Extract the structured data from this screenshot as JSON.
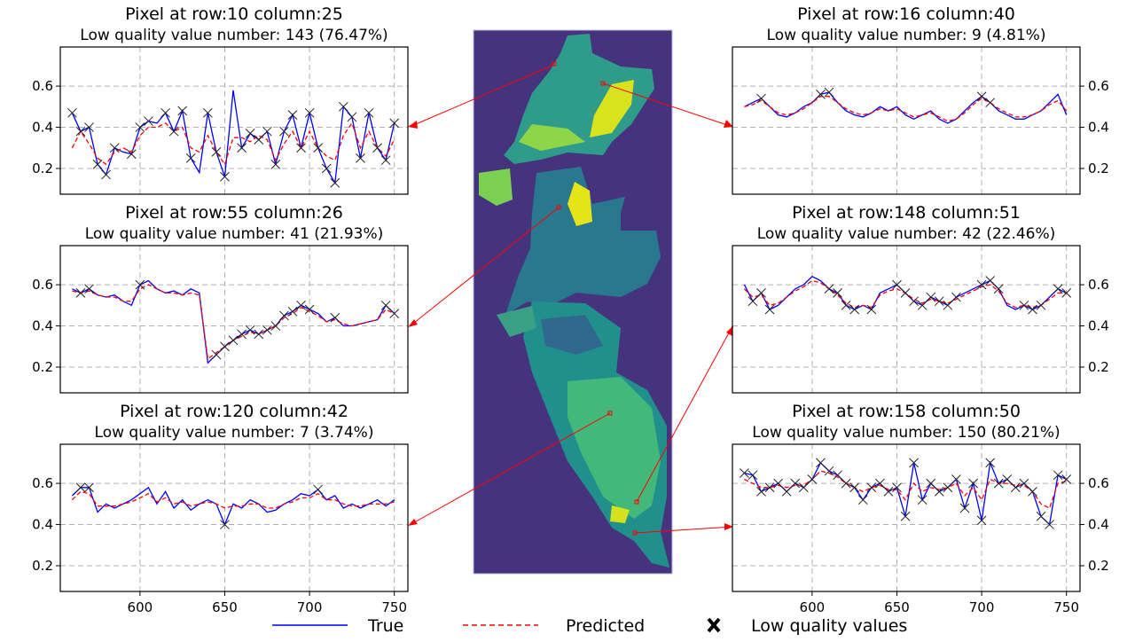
{
  "legend": {
    "true_label": "True",
    "predicted_label": "Predicted",
    "low_quality_label": "Low quality values"
  },
  "colors": {
    "true": "#0000ff",
    "predicted": "#ff0000",
    "low_quality": "#000000",
    "map_background": "#46337e",
    "link_line": "#ff0000"
  },
  "map": {
    "type": "image",
    "colormap": "viridis"
  },
  "chart_data": [
    {
      "type": "line",
      "title": "Pixel at row:10 column:25",
      "subtitle": "Low quality value number:  143 (76.47%)",
      "ylim": [
        0.075,
        0.79
      ],
      "xlim": [
        553,
        758
      ],
      "yticks": [
        "0.2",
        "0.4",
        "0.6"
      ],
      "xticks": [
        "600",
        "650",
        "700",
        "750"
      ],
      "grid": true,
      "y_axis_side": "left",
      "x": [
        560,
        565,
        570,
        575,
        580,
        585,
        590,
        595,
        600,
        605,
        610,
        615,
        620,
        625,
        630,
        635,
        640,
        645,
        650,
        655,
        660,
        665,
        670,
        675,
        680,
        685,
        690,
        695,
        700,
        705,
        710,
        715,
        720,
        725,
        730,
        735,
        740,
        745,
        750
      ],
      "true": [
        0.47,
        0.38,
        0.4,
        0.22,
        0.17,
        0.3,
        0.28,
        0.27,
        0.4,
        0.43,
        0.42,
        0.47,
        0.38,
        0.48,
        0.25,
        0.18,
        0.47,
        0.28,
        0.16,
        0.58,
        0.3,
        0.37,
        0.34,
        0.38,
        0.22,
        0.38,
        0.46,
        0.3,
        0.47,
        0.3,
        0.2,
        0.13,
        0.5,
        0.45,
        0.25,
        0.47,
        0.3,
        0.24,
        0.42
      ],
      "predicted": [
        0.3,
        0.38,
        0.32,
        0.25,
        0.22,
        0.28,
        0.3,
        0.28,
        0.36,
        0.4,
        0.4,
        0.42,
        0.38,
        0.4,
        0.3,
        0.28,
        0.36,
        0.28,
        0.22,
        0.35,
        0.35,
        0.33,
        0.36,
        0.34,
        0.24,
        0.32,
        0.38,
        0.3,
        0.38,
        0.3,
        0.26,
        0.24,
        0.36,
        0.42,
        0.3,
        0.38,
        0.3,
        0.26,
        0.34
      ],
      "low_quality_x": [
        560,
        565,
        570,
        575,
        580,
        585,
        595,
        600,
        605,
        615,
        620,
        625,
        630,
        640,
        645,
        650,
        660,
        665,
        670,
        675,
        680,
        685,
        690,
        695,
        700,
        705,
        710,
        715,
        720,
        725,
        730,
        735,
        740,
        745,
        750
      ]
    },
    {
      "type": "line",
      "title": "Pixel at row:55 column:26",
      "subtitle": "Low quality value number:  41 (21.93%)",
      "ylim": [
        0.075,
        0.79
      ],
      "xlim": [
        553,
        758
      ],
      "yticks": [
        "0.2",
        "0.4",
        "0.6"
      ],
      "xticks": [
        "600",
        "650",
        "700",
        "750"
      ],
      "grid": true,
      "y_axis_side": "left",
      "x": [
        560,
        565,
        570,
        575,
        580,
        585,
        590,
        595,
        600,
        605,
        610,
        615,
        620,
        625,
        630,
        635,
        640,
        645,
        650,
        655,
        660,
        665,
        670,
        675,
        680,
        685,
        690,
        695,
        700,
        705,
        710,
        715,
        720,
        725,
        730,
        735,
        740,
        745,
        750
      ],
      "true": [
        0.58,
        0.56,
        0.58,
        0.55,
        0.54,
        0.55,
        0.52,
        0.5,
        0.6,
        0.62,
        0.58,
        0.56,
        0.57,
        0.55,
        0.58,
        0.56,
        0.22,
        0.26,
        0.3,
        0.33,
        0.36,
        0.38,
        0.36,
        0.38,
        0.4,
        0.45,
        0.47,
        0.5,
        0.48,
        0.46,
        0.42,
        0.44,
        0.4,
        0.4,
        0.41,
        0.42,
        0.43,
        0.5,
        0.46
      ],
      "predicted": [
        0.57,
        0.56,
        0.57,
        0.55,
        0.54,
        0.54,
        0.52,
        0.52,
        0.58,
        0.6,
        0.58,
        0.56,
        0.56,
        0.55,
        0.56,
        0.55,
        0.24,
        0.27,
        0.3,
        0.33,
        0.35,
        0.37,
        0.36,
        0.38,
        0.4,
        0.44,
        0.46,
        0.49,
        0.47,
        0.45,
        0.42,
        0.43,
        0.41,
        0.4,
        0.41,
        0.42,
        0.43,
        0.48,
        0.46
      ],
      "low_quality_x": [
        565,
        570,
        600,
        645,
        650,
        655,
        660,
        665,
        670,
        675,
        680,
        685,
        690,
        695,
        700,
        715,
        745,
        750
      ]
    },
    {
      "type": "line",
      "title": "Pixel at row:120 column:42",
      "subtitle": "Low quality value number:  7 (3.74%)",
      "ylim": [
        0.075,
        0.79
      ],
      "xlim": [
        553,
        758
      ],
      "yticks": [
        "0.2",
        "0.4",
        "0.6"
      ],
      "xticks": [
        "600",
        "650",
        "700",
        "750"
      ],
      "grid": true,
      "y_axis_side": "left",
      "x": [
        560,
        565,
        570,
        575,
        580,
        585,
        590,
        595,
        600,
        605,
        610,
        615,
        620,
        625,
        630,
        635,
        640,
        645,
        650,
        655,
        660,
        665,
        670,
        675,
        680,
        685,
        690,
        695,
        700,
        705,
        710,
        715,
        720,
        725,
        730,
        735,
        740,
        745,
        750
      ],
      "true": [
        0.54,
        0.58,
        0.58,
        0.46,
        0.5,
        0.48,
        0.5,
        0.52,
        0.55,
        0.58,
        0.5,
        0.56,
        0.48,
        0.52,
        0.47,
        0.5,
        0.52,
        0.5,
        0.4,
        0.5,
        0.48,
        0.52,
        0.5,
        0.46,
        0.47,
        0.5,
        0.52,
        0.55,
        0.54,
        0.57,
        0.52,
        0.54,
        0.48,
        0.5,
        0.48,
        0.5,
        0.52,
        0.49,
        0.52
      ],
      "predicted": [
        0.52,
        0.56,
        0.55,
        0.49,
        0.49,
        0.49,
        0.5,
        0.51,
        0.53,
        0.55,
        0.51,
        0.53,
        0.5,
        0.51,
        0.49,
        0.5,
        0.51,
        0.5,
        0.48,
        0.49,
        0.49,
        0.5,
        0.5,
        0.48,
        0.48,
        0.5,
        0.51,
        0.53,
        0.53,
        0.55,
        0.52,
        0.52,
        0.5,
        0.49,
        0.49,
        0.5,
        0.5,
        0.5,
        0.51
      ],
      "low_quality_x": [
        565,
        570,
        650,
        705
      ]
    },
    {
      "type": "line",
      "title": "Pixel at row:16 column:40",
      "subtitle": "Low quality value number:  9 (4.81%)",
      "ylim": [
        0.075,
        0.79
      ],
      "xlim": [
        553,
        758
      ],
      "yticks": [
        "0.2",
        "0.4",
        "0.6"
      ],
      "xticks": [
        "600",
        "650",
        "700",
        "750"
      ],
      "grid": true,
      "y_axis_side": "right",
      "x": [
        560,
        565,
        570,
        575,
        580,
        585,
        590,
        595,
        600,
        605,
        610,
        615,
        620,
        625,
        630,
        635,
        640,
        645,
        650,
        655,
        660,
        665,
        670,
        675,
        680,
        685,
        690,
        695,
        700,
        705,
        710,
        715,
        720,
        725,
        730,
        735,
        740,
        745,
        750
      ],
      "true": [
        0.5,
        0.52,
        0.54,
        0.5,
        0.46,
        0.45,
        0.47,
        0.5,
        0.52,
        0.56,
        0.57,
        0.52,
        0.48,
        0.46,
        0.45,
        0.47,
        0.5,
        0.48,
        0.5,
        0.46,
        0.44,
        0.46,
        0.48,
        0.44,
        0.42,
        0.44,
        0.48,
        0.52,
        0.55,
        0.52,
        0.48,
        0.46,
        0.44,
        0.44,
        0.46,
        0.48,
        0.52,
        0.56,
        0.46
      ],
      "predicted": [
        0.5,
        0.51,
        0.53,
        0.5,
        0.47,
        0.46,
        0.47,
        0.49,
        0.52,
        0.55,
        0.55,
        0.52,
        0.49,
        0.47,
        0.46,
        0.47,
        0.49,
        0.48,
        0.49,
        0.47,
        0.45,
        0.46,
        0.47,
        0.45,
        0.43,
        0.44,
        0.47,
        0.51,
        0.54,
        0.52,
        0.49,
        0.47,
        0.45,
        0.45,
        0.46,
        0.48,
        0.51,
        0.53,
        0.48
      ],
      "low_quality_x": [
        570,
        605,
        610,
        700,
        705
      ]
    },
    {
      "type": "line",
      "title": "Pixel at row:148 column:51",
      "subtitle": "Low quality value number:  42 (22.46%)",
      "ylim": [
        0.075,
        0.79
      ],
      "xlim": [
        553,
        758
      ],
      "yticks": [
        "0.2",
        "0.4",
        "0.6"
      ],
      "xticks": [
        "600",
        "650",
        "700",
        "750"
      ],
      "grid": true,
      "y_axis_side": "right",
      "x": [
        560,
        565,
        570,
        575,
        580,
        585,
        590,
        595,
        600,
        605,
        610,
        615,
        620,
        625,
        630,
        635,
        640,
        645,
        650,
        655,
        660,
        665,
        670,
        675,
        680,
        685,
        690,
        695,
        700,
        705,
        710,
        715,
        720,
        725,
        730,
        735,
        740,
        745,
        750
      ],
      "true": [
        0.6,
        0.52,
        0.56,
        0.48,
        0.5,
        0.54,
        0.58,
        0.6,
        0.64,
        0.62,
        0.58,
        0.56,
        0.5,
        0.48,
        0.5,
        0.48,
        0.56,
        0.58,
        0.6,
        0.56,
        0.52,
        0.5,
        0.54,
        0.52,
        0.5,
        0.54,
        0.56,
        0.58,
        0.6,
        0.62,
        0.58,
        0.5,
        0.48,
        0.5,
        0.48,
        0.5,
        0.54,
        0.58,
        0.56
      ],
      "predicted": [
        0.58,
        0.54,
        0.55,
        0.5,
        0.51,
        0.54,
        0.57,
        0.59,
        0.62,
        0.61,
        0.58,
        0.55,
        0.51,
        0.49,
        0.5,
        0.49,
        0.55,
        0.57,
        0.58,
        0.56,
        0.53,
        0.51,
        0.53,
        0.52,
        0.51,
        0.53,
        0.55,
        0.57,
        0.59,
        0.6,
        0.57,
        0.51,
        0.49,
        0.5,
        0.49,
        0.5,
        0.53,
        0.56,
        0.56
      ],
      "low_quality_x": [
        565,
        570,
        575,
        610,
        615,
        620,
        625,
        635,
        650,
        655,
        660,
        665,
        670,
        675,
        680,
        685,
        700,
        705,
        710,
        725,
        730,
        735,
        745,
        750
      ]
    },
    {
      "type": "line",
      "title": "Pixel at row:158 column:50",
      "subtitle": "Low quality value number:  150 (80.21%)",
      "ylim": [
        0.075,
        0.79
      ],
      "xlim": [
        553,
        758
      ],
      "yticks": [
        "0.2",
        "0.4",
        "0.6"
      ],
      "xticks": [
        "600",
        "650",
        "700",
        "750"
      ],
      "grid": true,
      "y_axis_side": "right",
      "x": [
        560,
        565,
        570,
        575,
        580,
        585,
        590,
        595,
        600,
        605,
        610,
        615,
        620,
        625,
        630,
        635,
        640,
        645,
        650,
        655,
        660,
        665,
        670,
        675,
        680,
        685,
        690,
        695,
        700,
        705,
        710,
        715,
        720,
        725,
        730,
        735,
        740,
        745,
        750
      ],
      "true": [
        0.65,
        0.64,
        0.56,
        0.58,
        0.6,
        0.56,
        0.6,
        0.58,
        0.62,
        0.7,
        0.66,
        0.64,
        0.6,
        0.58,
        0.52,
        0.58,
        0.6,
        0.56,
        0.58,
        0.44,
        0.7,
        0.52,
        0.6,
        0.56,
        0.58,
        0.62,
        0.48,
        0.6,
        0.42,
        0.7,
        0.6,
        0.62,
        0.58,
        0.6,
        0.56,
        0.44,
        0.4,
        0.64,
        0.62
      ],
      "predicted": [
        0.62,
        0.6,
        0.58,
        0.58,
        0.59,
        0.58,
        0.59,
        0.59,
        0.62,
        0.66,
        0.65,
        0.63,
        0.6,
        0.58,
        0.56,
        0.58,
        0.59,
        0.57,
        0.57,
        0.52,
        0.6,
        0.56,
        0.58,
        0.57,
        0.58,
        0.6,
        0.54,
        0.58,
        0.52,
        0.62,
        0.6,
        0.6,
        0.59,
        0.59,
        0.56,
        0.5,
        0.48,
        0.6,
        0.61
      ],
      "low_quality_x": [
        560,
        565,
        570,
        575,
        580,
        585,
        590,
        595,
        600,
        605,
        610,
        615,
        620,
        625,
        630,
        635,
        640,
        645,
        650,
        655,
        660,
        665,
        670,
        675,
        680,
        685,
        690,
        695,
        700,
        705,
        710,
        715,
        720,
        725,
        730,
        735,
        740,
        745,
        750
      ]
    }
  ]
}
